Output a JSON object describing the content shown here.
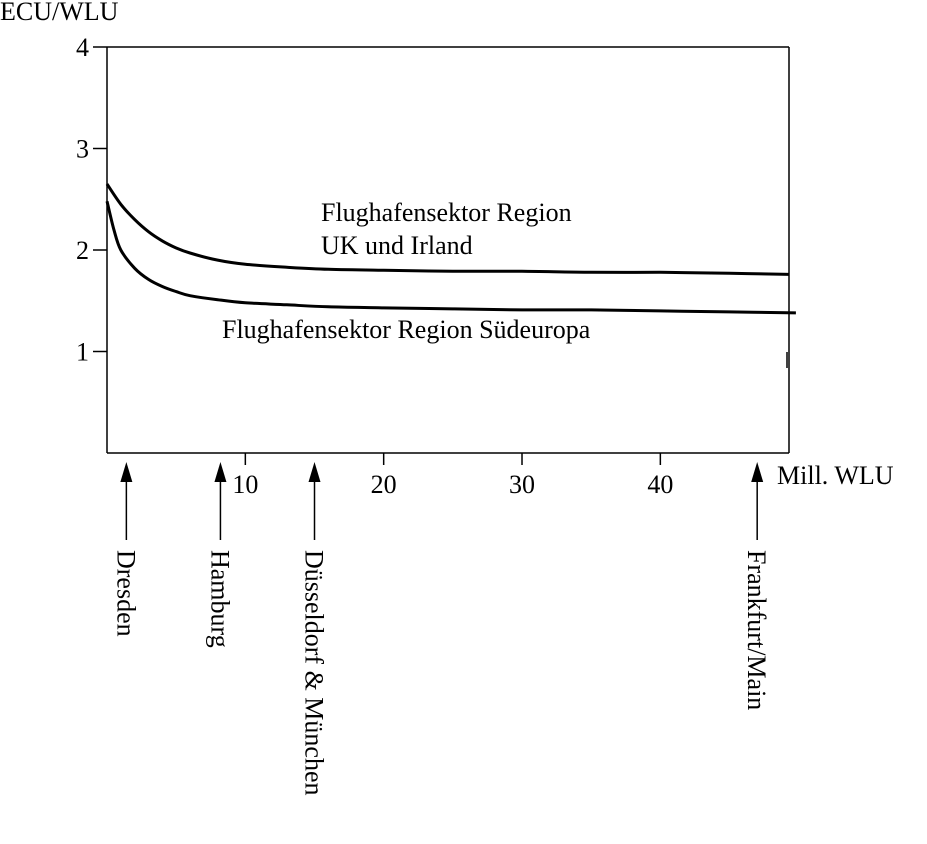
{
  "chart_data": {
    "type": "line",
    "title": "",
    "ylabel": "ECU/WLU",
    "xlabel": "Mill. WLU",
    "xlim": [
      0,
      49.3
    ],
    "ylim": [
      0,
      4
    ],
    "xticks": [
      10,
      20,
      30,
      40
    ],
    "yticks": [
      1,
      2,
      3,
      4
    ],
    "grid": false,
    "series": [
      {
        "name": "Flughafensektor Region UK und Irland",
        "label_lines": [
          "Flughafensektor Region",
          "UK und Irland"
        ],
        "x": [
          0,
          1,
          2,
          3,
          4,
          5,
          6,
          8,
          10,
          13,
          16,
          20,
          25,
          30,
          35,
          40,
          45,
          49.3
        ],
        "y": [
          2.65,
          2.45,
          2.3,
          2.18,
          2.09,
          2.02,
          1.97,
          1.9,
          1.86,
          1.83,
          1.81,
          1.8,
          1.79,
          1.79,
          1.78,
          1.78,
          1.77,
          1.76
        ]
      },
      {
        "name": "Flughafensektor Region Südeuropa",
        "label_lines": [
          "Flughafensektor Region Südeuropa"
        ],
        "x": [
          0,
          0.5,
          1,
          2,
          3,
          4,
          5,
          6,
          8,
          10,
          13,
          16,
          20,
          25,
          30,
          35,
          40,
          45,
          49.8
        ],
        "y": [
          2.48,
          2.2,
          2.0,
          1.82,
          1.71,
          1.64,
          1.59,
          1.55,
          1.51,
          1.48,
          1.46,
          1.44,
          1.43,
          1.42,
          1.41,
          1.41,
          1.4,
          1.39,
          1.38
        ]
      }
    ],
    "annotations": [
      {
        "label": "Dresden",
        "x": 1.4
      },
      {
        "label": "Hamburg",
        "x": 8.2
      },
      {
        "label": "Düsseldorf & München",
        "x": 15
      },
      {
        "label": "Frankfurt/Main",
        "x": 47
      }
    ]
  }
}
